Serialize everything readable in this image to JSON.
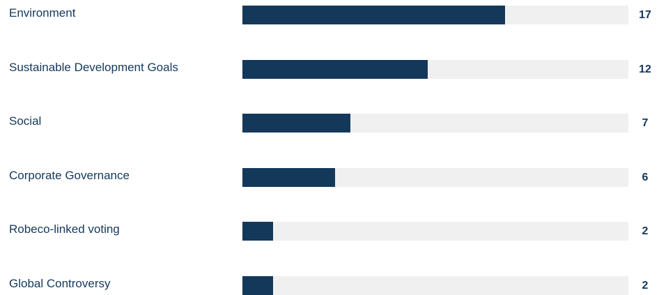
{
  "chart_data": {
    "type": "bar",
    "orientation": "horizontal",
    "categories": [
      "Environment",
      "Sustainable Development Goals",
      "Social",
      "Corporate Governance",
      "Robeco-linked voting",
      "Global Controversy"
    ],
    "values": [
      17,
      12,
      7,
      6,
      2,
      2
    ],
    "xlim": [
      0,
      25
    ],
    "grid": false,
    "legend": "none",
    "colors": {
      "bar": "#14385a",
      "track": "#f0f0f0",
      "text": "#14385a"
    }
  }
}
